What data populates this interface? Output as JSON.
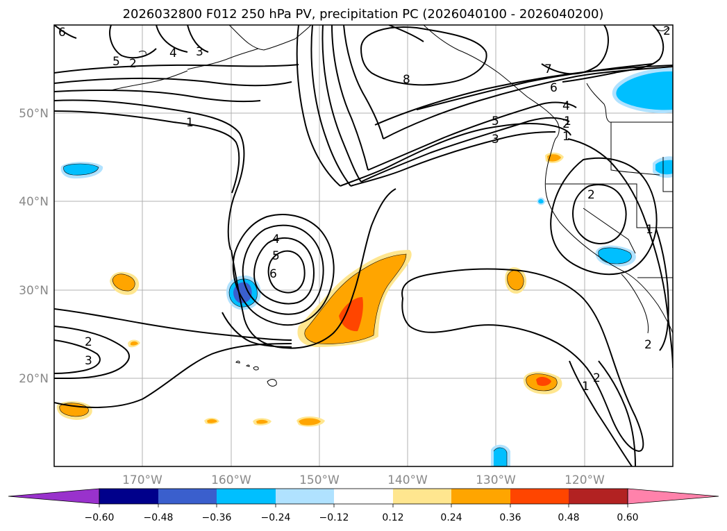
{
  "title": "2026032800 F012 250 hPa PV, precipitation PC (2026040100 - 2026040200)",
  "lat_labels": [
    "50°N",
    "40°N",
    "30°N",
    "20°N"
  ],
  "lon_labels": [
    "170°W",
    "160°W",
    "150°W",
    "140°W",
    "130°W",
    "120°W"
  ],
  "colorbar": {
    "ticks": [
      "−0.60",
      "−0.48",
      "−0.36",
      "−0.24",
      "−0.12",
      "0.12",
      "0.24",
      "0.36",
      "0.48",
      "0.60"
    ],
    "colors": [
      "#9932cc",
      "#00008b",
      "#3a5fcd",
      "#00bfff",
      "#b0e2ff",
      "#ffffff",
      "#ffe68f",
      "#ffa500",
      "#ff4500",
      "#b22222",
      "#ff82ab"
    ]
  },
  "pv_contour_labels": [
    "6",
    "5",
    "4",
    "3",
    "2",
    "1",
    "8",
    "7",
    "6",
    "5",
    "4",
    "3",
    "2",
    "1",
    "1",
    "4",
    "5",
    "6",
    "2",
    "3",
    "2",
    "2",
    "1",
    "2",
    "1",
    "2"
  ]
}
